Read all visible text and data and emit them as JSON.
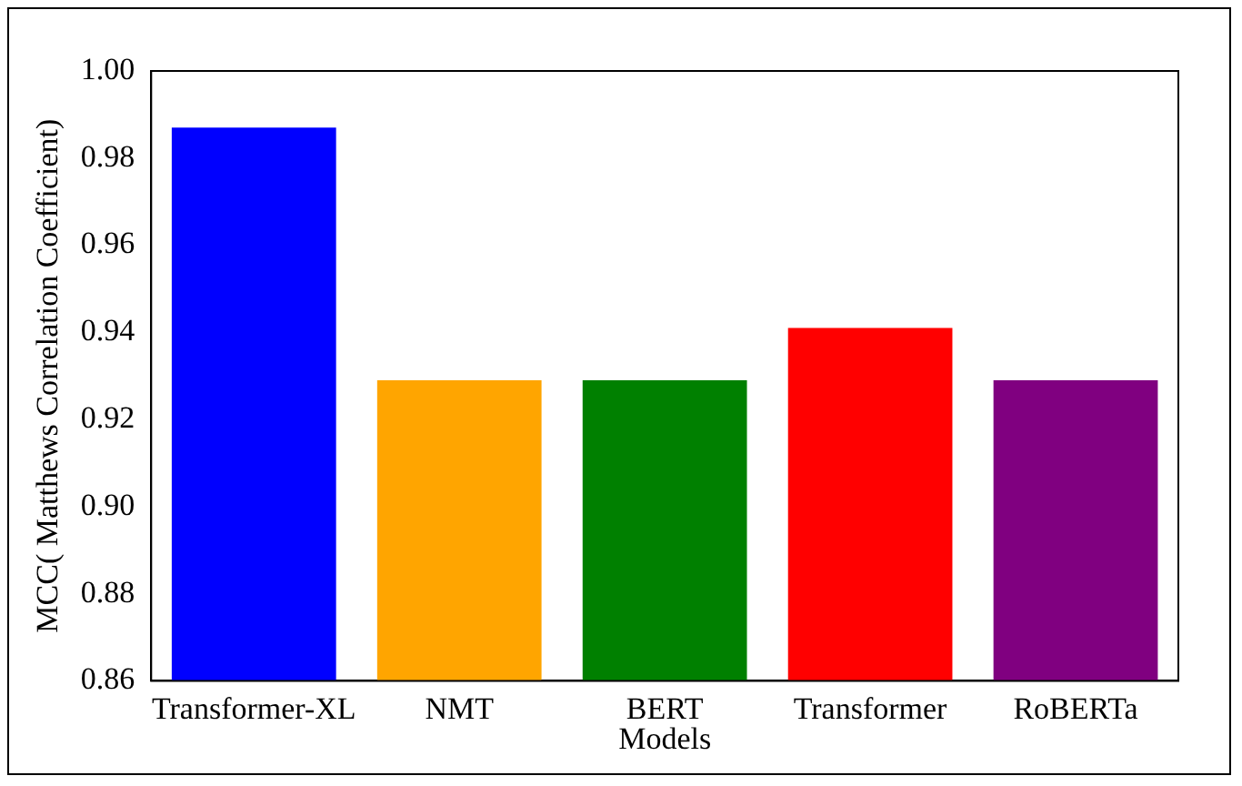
{
  "chart_data": {
    "type": "bar",
    "xlabel": "Models",
    "ylabel": "MCC( Matthews Correlation Coefficient)",
    "categories": [
      "Transformer-XL",
      "NMT",
      "BERT",
      "Transformer",
      "RoBERTa"
    ],
    "values": [
      0.987,
      0.929,
      0.929,
      0.941,
      0.929
    ],
    "colors": [
      "#0000ff",
      "#ffa500",
      "#008000",
      "#ff0000",
      "#800080"
    ],
    "ylim": [
      0.86,
      1.0
    ],
    "yticks": [
      {
        "value": 0.86,
        "label": "0.86"
      },
      {
        "value": 0.88,
        "label": "0.88"
      },
      {
        "value": 0.9,
        "label": "0.90"
      },
      {
        "value": 0.92,
        "label": "0.92"
      },
      {
        "value": 0.94,
        "label": "0.94"
      },
      {
        "value": 0.96,
        "label": "0.96"
      },
      {
        "value": 0.98,
        "label": "0.98"
      },
      {
        "value": 1.0,
        "label": "1.00"
      }
    ],
    "grid": false,
    "legend": false
  }
}
